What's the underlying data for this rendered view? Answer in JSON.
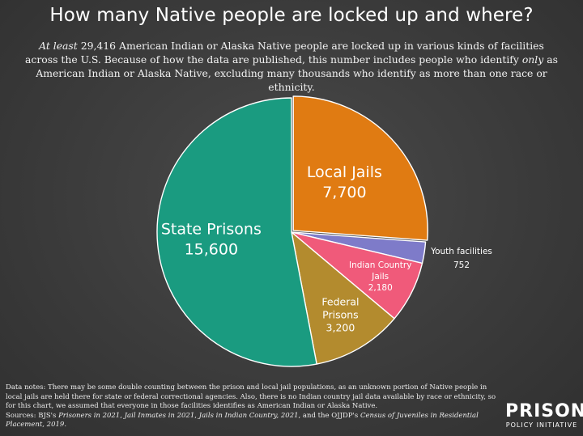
{
  "header": {
    "title": "How many Native people are locked up and where?",
    "subtitle_italic_lead": "At least",
    "subtitle_part1": " 29,416 American Indian or Alaska Native people are locked up in various kinds of facilities across the U.S. Because of how the data are published, this number includes people who identify ",
    "subtitle_italic_only": "only",
    "subtitle_part2": " as American Indian or Alaska Native, excluding many thousands who identify as more than one race or ethnicity."
  },
  "chart_data": {
    "type": "pie",
    "start_angle_deg": 0,
    "direction": "clockwise",
    "slices": [
      {
        "label_lines": [
          "Local Jails"
        ],
        "value_text": "7,700",
        "value": 7700,
        "color": "#e07b12",
        "label_placement": "inside-large"
      },
      {
        "label_lines": [
          "Youth facilities"
        ],
        "value_text": "752",
        "value": 752,
        "color": "#7e7bc9",
        "label_placement": "outside"
      },
      {
        "label_lines": [
          "Indian Country",
          "Jails"
        ],
        "value_text": "2,180",
        "value": 2180,
        "color": "#f05a7a",
        "label_placement": "inside-small"
      },
      {
        "label_lines": [
          "Federal",
          "Prisons"
        ],
        "value_text": "3,200",
        "value": 3200,
        "color": "#b38b2e",
        "label_placement": "inside-medium"
      },
      {
        "label_lines": [
          "State Prisons"
        ],
        "value_text": "15,600",
        "value": 15600,
        "color": "#1a9b80",
        "label_placement": "inside-large"
      }
    ],
    "explode_slice": "Local Jails"
  },
  "footer": {
    "notes_text": "Data notes: There may be some double counting between the prison and local jail populations, as an unknown portion of Native people in local jails are held there for state or federal correctional agencies. Also, there is no Indian country jail data available by race or ethnicity, so for this chart, we assumed that everyone in those facilities identifies as American Indian or Alaska Native.",
    "sources_lead": "Sources: BJS's ",
    "src1": "Prisoners in 2021",
    "sep1": ", ",
    "src2": "Jail Inmates in 2021",
    "sep2": ", ",
    "src3": "Jails in Indian Country, 2021",
    "sep3": ", and the OJJDP's ",
    "src4": "Census of Juveniles in Residential Placement, 2019",
    "end": "."
  },
  "logo": {
    "main": "PRISON",
    "sub": "POLICY INITIATIVE"
  }
}
